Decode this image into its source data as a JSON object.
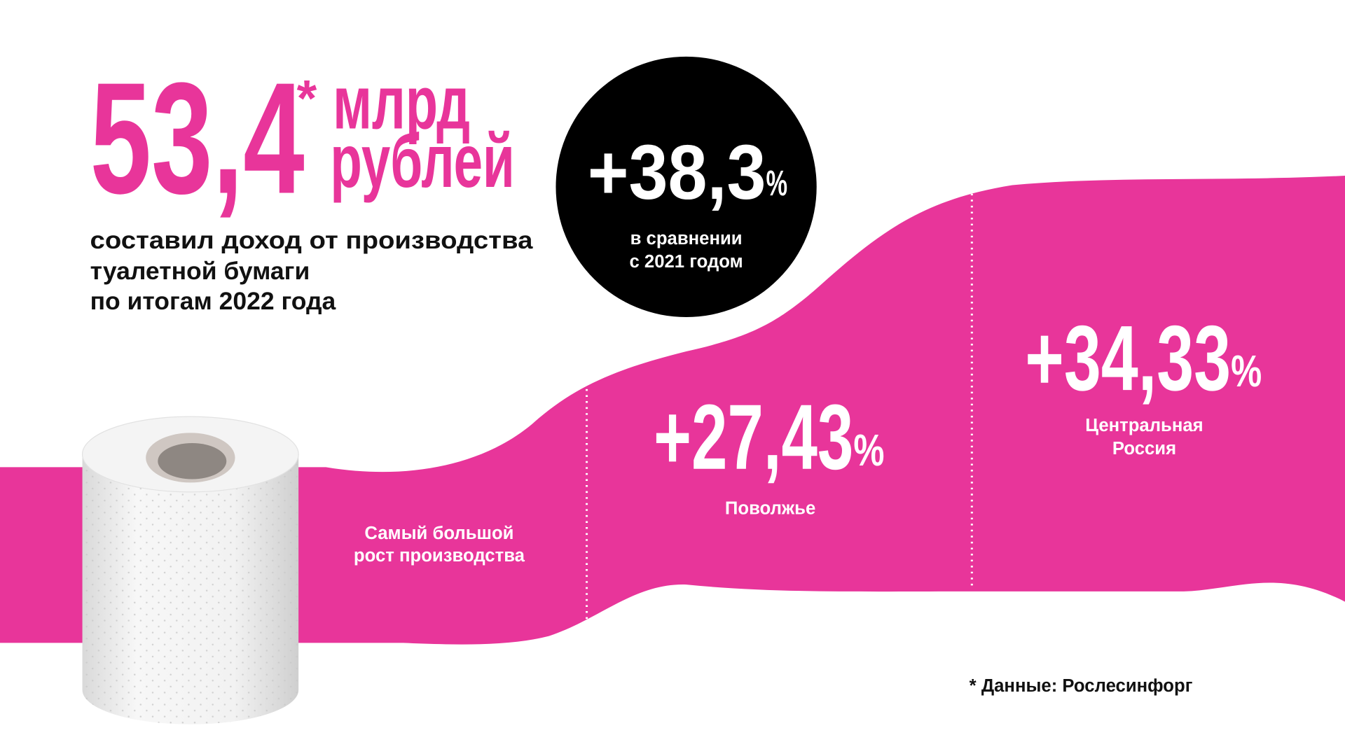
{
  "headline": {
    "value": "53,4",
    "footnote_mark": "*",
    "unit_lines": [
      "млрд",
      "рублей"
    ],
    "description_lines": [
      "составил доход от производства",
      "туалетной бумаги",
      "по итогам 2022 года"
    ]
  },
  "growth": {
    "value": "+38,3",
    "unit": "%",
    "caption_lines": [
      "в сравнении",
      "с 2021 годом"
    ]
  },
  "regions": {
    "title_lines": [
      "Самый большой",
      "рост производства"
    ],
    "items": [
      {
        "value": "+27,43",
        "unit": "%",
        "name_lines": [
          "Поволжье"
        ]
      },
      {
        "value": "+34,33",
        "unit": "%",
        "name_lines": [
          "Центральная",
          "Россия"
        ]
      }
    ]
  },
  "footnote": "* Данные: Рослесинфорг"
}
